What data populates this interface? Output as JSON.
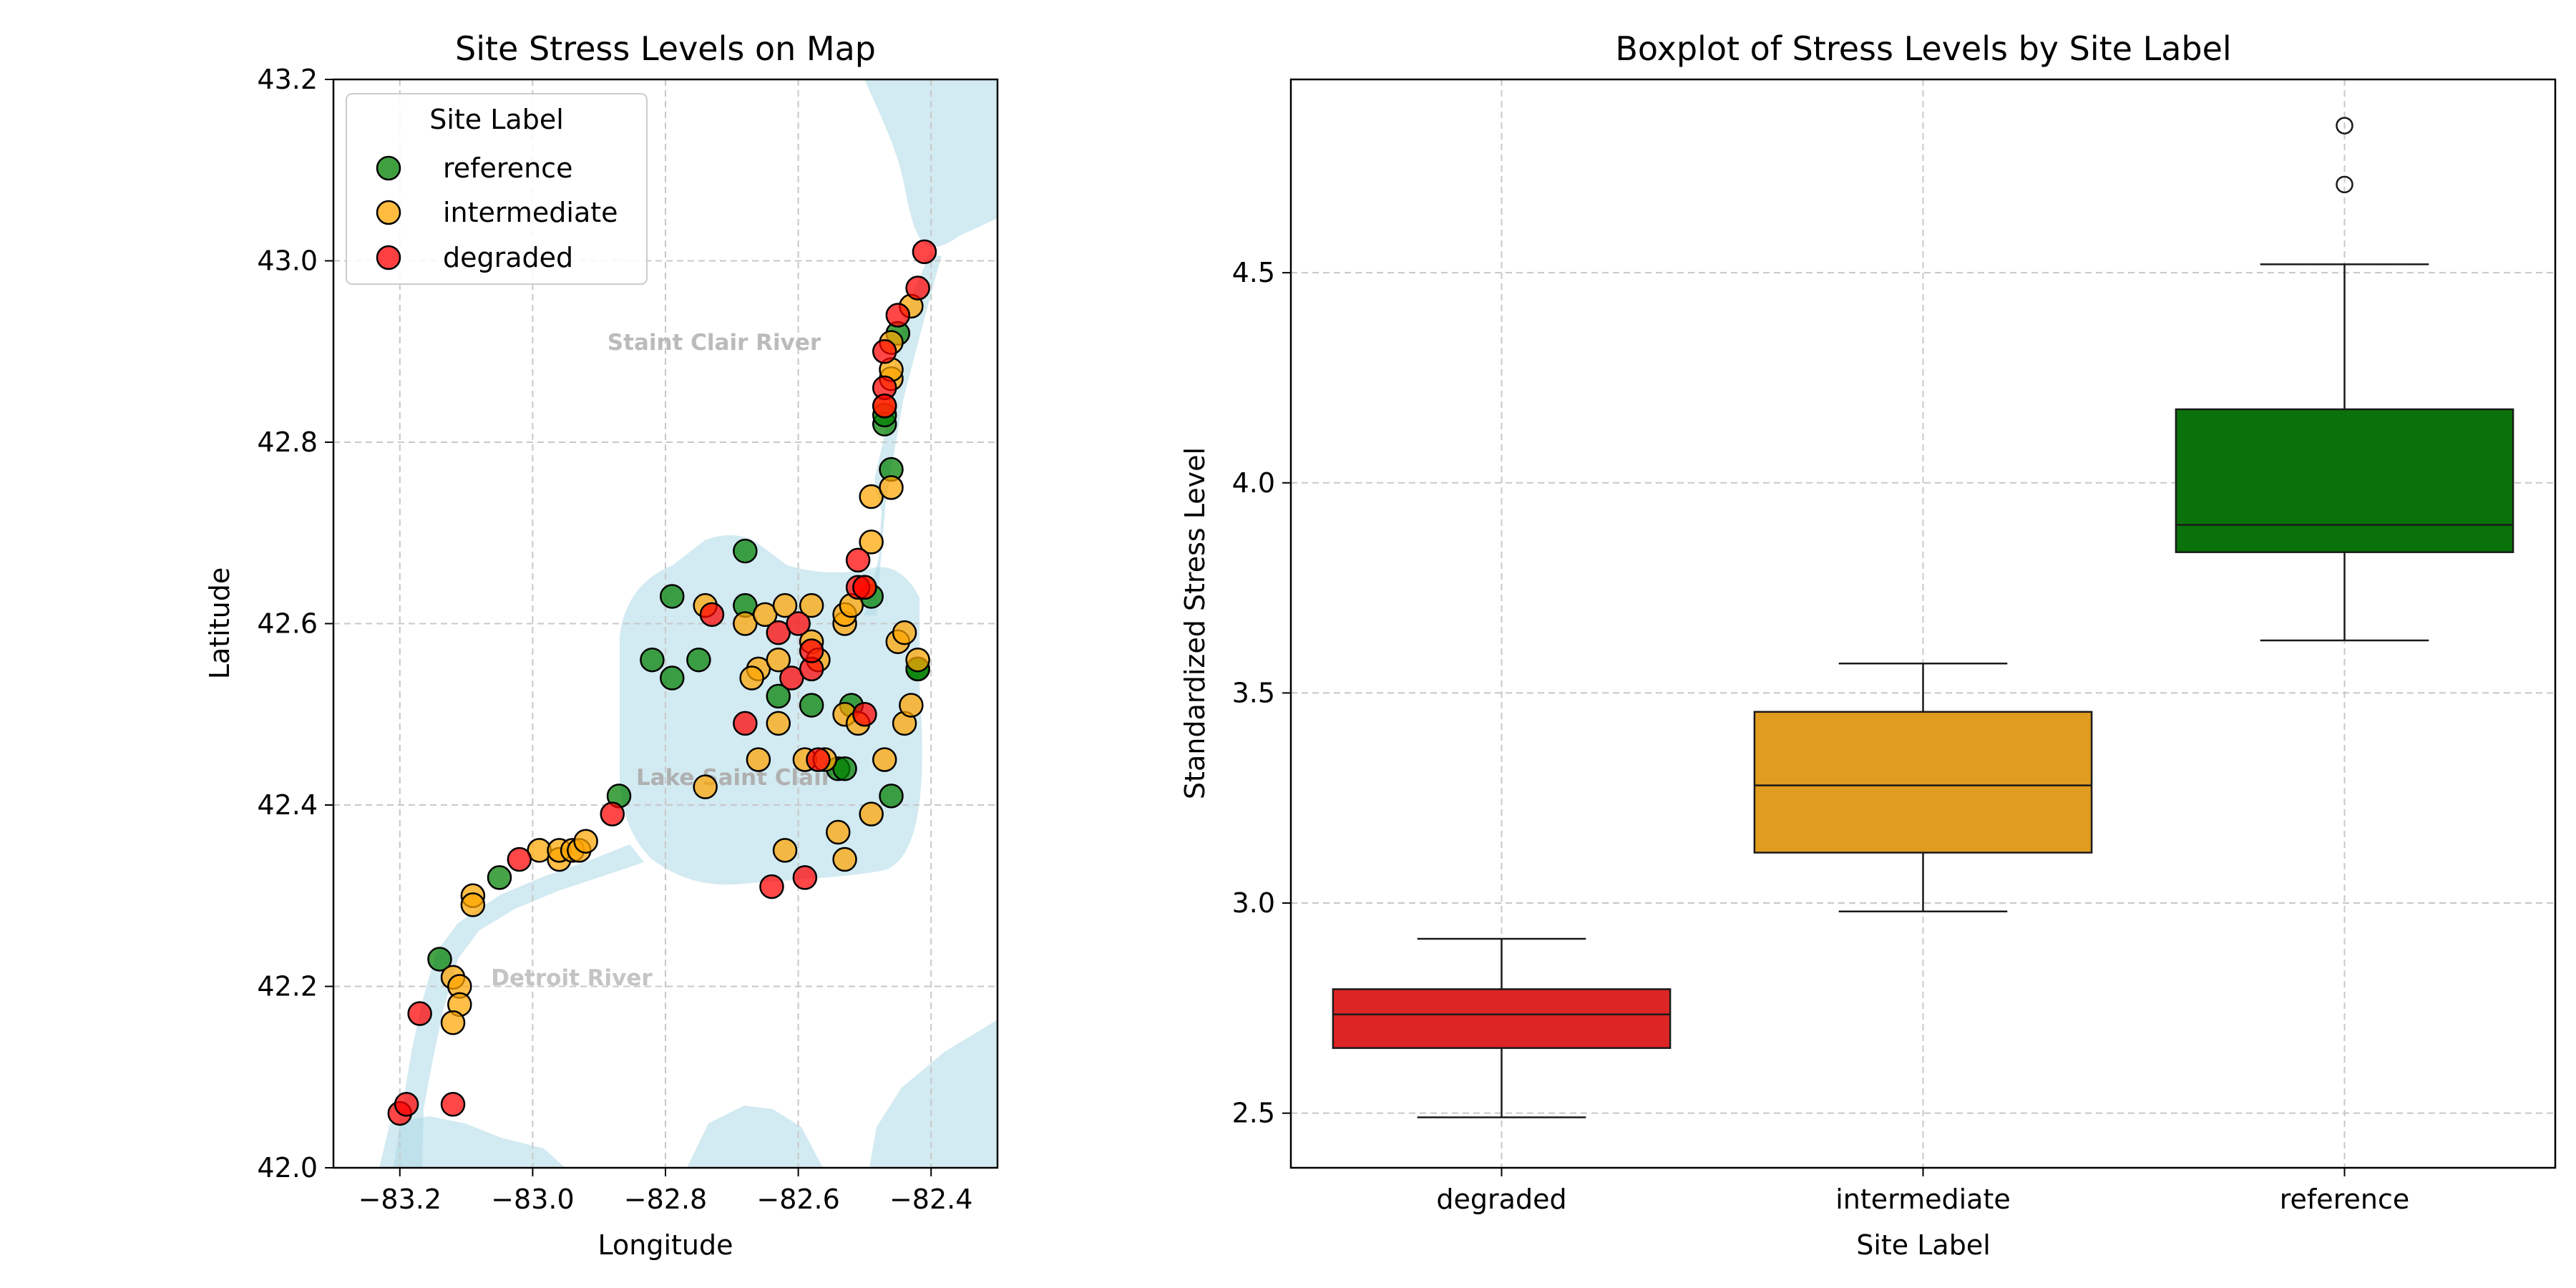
{
  "colors": {
    "reference": "#008000",
    "intermediate": "#FFA500",
    "degraded": "#FF0000",
    "water": "#ADD8E6",
    "box_reference": "#0A720A",
    "box_intermediate": "#E09C1F",
    "box_degraded": "#DE2525"
  },
  "chart_data": [
    {
      "type": "scatter",
      "title": "Site Stress Levels on Map",
      "xlabel": "Longitude",
      "ylabel": "Latitude",
      "xlim": [
        -83.3,
        -82.3
      ],
      "ylim": [
        42.0,
        43.2
      ],
      "x_ticks": [
        -83.2,
        -83.0,
        -82.8,
        -82.6,
        -82.4
      ],
      "x_tick_labels": [
        "−83.2",
        "−83.0",
        "−82.8",
        "−82.6",
        "−82.4"
      ],
      "y_ticks": [
        42.0,
        42.2,
        42.4,
        42.6,
        42.8,
        43.0,
        43.2
      ],
      "y_tick_labels": [
        "42.0",
        "42.2",
        "42.4",
        "42.6",
        "42.8",
        "43.0",
        "43.2"
      ],
      "grid": true,
      "legend": {
        "title": "Site Label",
        "placement": "top-left",
        "entries": [
          "reference",
          "intermediate",
          "degraded"
        ]
      },
      "annotations": [
        "Staint Clair River",
        "Lake Saint Clair",
        "Detroit River"
      ],
      "series": [
        {
          "name": "reference",
          "points": [
            [
              -83.14,
              42.23
            ],
            [
              -83.05,
              42.32
            ],
            [
              -82.87,
              42.41
            ],
            [
              -82.82,
              42.56
            ],
            [
              -82.79,
              42.63
            ],
            [
              -82.79,
              42.54
            ],
            [
              -82.75,
              42.56
            ],
            [
              -82.68,
              42.68
            ],
            [
              -82.68,
              42.62
            ],
            [
              -82.63,
              42.52
            ],
            [
              -82.58,
              42.51
            ],
            [
              -82.54,
              42.44
            ],
            [
              -82.53,
              42.44
            ],
            [
              -82.52,
              42.51
            ],
            [
              -82.49,
              42.63
            ],
            [
              -82.47,
              42.82
            ],
            [
              -82.47,
              42.83
            ],
            [
              -82.46,
              42.77
            ],
            [
              -82.45,
              42.92
            ],
            [
              -82.46,
              42.41
            ],
            [
              -82.42,
              42.55
            ],
            [
              -82.42,
              42.55
            ]
          ]
        },
        {
          "name": "intermediate",
          "points": [
            [
              -83.12,
              42.21
            ],
            [
              -83.11,
              42.2
            ],
            [
              -83.11,
              42.18
            ],
            [
              -83.12,
              42.16
            ],
            [
              -83.09,
              42.3
            ],
            [
              -83.09,
              42.29
            ],
            [
              -82.99,
              42.35
            ],
            [
              -82.96,
              42.34
            ],
            [
              -82.96,
              42.35
            ],
            [
              -82.94,
              42.35
            ],
            [
              -82.93,
              42.35
            ],
            [
              -82.92,
              42.36
            ],
            [
              -82.74,
              42.42
            ],
            [
              -82.74,
              42.62
            ],
            [
              -82.68,
              42.6
            ],
            [
              -82.66,
              42.55
            ],
            [
              -82.67,
              42.54
            ],
            [
              -82.66,
              42.45
            ],
            [
              -82.65,
              42.61
            ],
            [
              -82.63,
              42.56
            ],
            [
              -82.63,
              42.49
            ],
            [
              -82.62,
              42.35
            ],
            [
              -82.62,
              42.62
            ],
            [
              -82.59,
              42.45
            ],
            [
              -82.58,
              42.62
            ],
            [
              -82.58,
              42.58
            ],
            [
              -82.57,
              42.56
            ],
            [
              -82.56,
              42.45
            ],
            [
              -82.54,
              42.37
            ],
            [
              -82.53,
              42.34
            ],
            [
              -82.53,
              42.5
            ],
            [
              -82.53,
              42.6
            ],
            [
              -82.53,
              42.61
            ],
            [
              -82.52,
              42.62
            ],
            [
              -82.51,
              42.49
            ],
            [
              -82.5,
              42.64
            ],
            [
              -82.49,
              42.39
            ],
            [
              -82.49,
              42.69
            ],
            [
              -82.49,
              42.74
            ],
            [
              -82.47,
              42.45
            ],
            [
              -82.47,
              42.84
            ],
            [
              -82.46,
              42.75
            ],
            [
              -82.46,
              42.87
            ],
            [
              -82.46,
              42.88
            ],
            [
              -82.46,
              42.91
            ],
            [
              -82.45,
              42.58
            ],
            [
              -82.44,
              42.49
            ],
            [
              -82.44,
              42.59
            ],
            [
              -82.43,
              42.51
            ],
            [
              -82.43,
              42.95
            ],
            [
              -82.42,
              42.56
            ]
          ]
        },
        {
          "name": "degraded",
          "points": [
            [
              -83.2,
              42.06
            ],
            [
              -83.19,
              42.07
            ],
            [
              -83.17,
              42.17
            ],
            [
              -83.12,
              42.07
            ],
            [
              -83.02,
              42.34
            ],
            [
              -82.88,
              42.39
            ],
            [
              -82.73,
              42.61
            ],
            [
              -82.68,
              42.49
            ],
            [
              -82.64,
              42.31
            ],
            [
              -82.63,
              42.59
            ],
            [
              -82.61,
              42.54
            ],
            [
              -82.6,
              42.6
            ],
            [
              -82.59,
              42.32
            ],
            [
              -82.58,
              42.55
            ],
            [
              -82.58,
              42.57
            ],
            [
              -82.57,
              42.45
            ],
            [
              -82.51,
              42.67
            ],
            [
              -82.51,
              42.64
            ],
            [
              -82.5,
              42.64
            ],
            [
              -82.5,
              42.5
            ],
            [
              -82.47,
              42.9
            ],
            [
              -82.47,
              42.86
            ],
            [
              -82.47,
              42.84
            ],
            [
              -82.45,
              42.94
            ],
            [
              -82.42,
              42.97
            ],
            [
              -82.41,
              43.01
            ]
          ]
        }
      ]
    },
    {
      "type": "box",
      "title": "Boxplot of Stress Levels by Site Label",
      "xlabel": "Site Label",
      "ylabel": "Standardized Stress Level",
      "ylim": [
        2.37,
        4.96
      ],
      "y_ticks": [
        2.5,
        3.0,
        3.5,
        4.0,
        4.5
      ],
      "y_tick_labels": [
        "2.5",
        "3.0",
        "3.5",
        "4.0",
        "4.5"
      ],
      "grid": true,
      "categories": [
        "degraded",
        "intermediate",
        "reference"
      ],
      "boxes": [
        {
          "name": "degraded",
          "whisker_low": 2.49,
          "q1": 2.655,
          "median": 2.735,
          "q3": 2.795,
          "whisker_high": 2.915,
          "outliers": []
        },
        {
          "name": "intermediate",
          "whisker_low": 2.98,
          "q1": 3.12,
          "median": 3.28,
          "q3": 3.455,
          "whisker_high": 3.57,
          "outliers": []
        },
        {
          "name": "reference",
          "whisker_low": 3.625,
          "q1": 3.835,
          "median": 3.9,
          "q3": 4.175,
          "whisker_high": 4.52,
          "outliers": [
            4.71,
            4.85
          ]
        }
      ]
    }
  ]
}
